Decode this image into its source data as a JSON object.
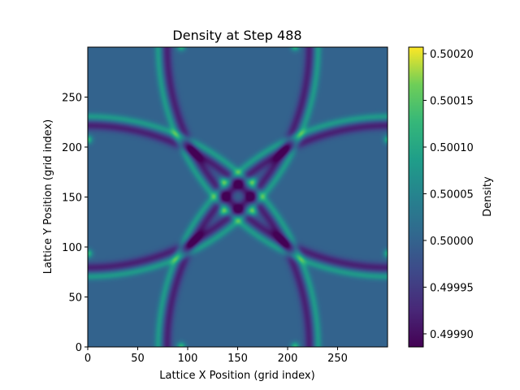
{
  "chart_data": {
    "type": "heatmap",
    "title": "Density at Step 488",
    "xlabel": "Lattice X Position (grid index)",
    "ylabel": "Lattice Y Position (grid index)",
    "colorbar_label": "Density",
    "colormap": "viridis",
    "xlim": [
      0,
      300
    ],
    "ylim": [
      0,
      300
    ],
    "xticks": [
      0,
      50,
      100,
      150,
      200,
      250
    ],
    "yticks": [
      0,
      50,
      100,
      150,
      200,
      250
    ],
    "colorbar_range": [
      0.499886,
      0.500207
    ],
    "colorbar_ticks": [
      "0.49990",
      "0.49995",
      "0.50000",
      "0.50005",
      "0.50010",
      "0.50015",
      "0.50020"
    ],
    "colorbar_tick_values": [
      0.4999,
      0.49995,
      0.5,
      0.50005,
      0.5001,
      0.50015,
      0.5002
    ],
    "background_value": 0.5,
    "ring_crest_value": 0.50008,
    "ring_trough_value": 0.49992,
    "peak_value": 0.5002,
    "ring_centers": [
      [
        0,
        0
      ],
      [
        300,
        0
      ],
      [
        0,
        300
      ],
      [
        300,
        300
      ]
    ],
    "ring_radius": 230,
    "peaks": [
      [
        93,
        0
      ],
      [
        207,
        0
      ],
      [
        93,
        300
      ],
      [
        207,
        300
      ],
      [
        0,
        93
      ],
      [
        0,
        207
      ],
      [
        300,
        93
      ],
      [
        300,
        207
      ],
      [
        135,
        135
      ],
      [
        165,
        135
      ],
      [
        135,
        165
      ],
      [
        165,
        165
      ]
    ]
  }
}
